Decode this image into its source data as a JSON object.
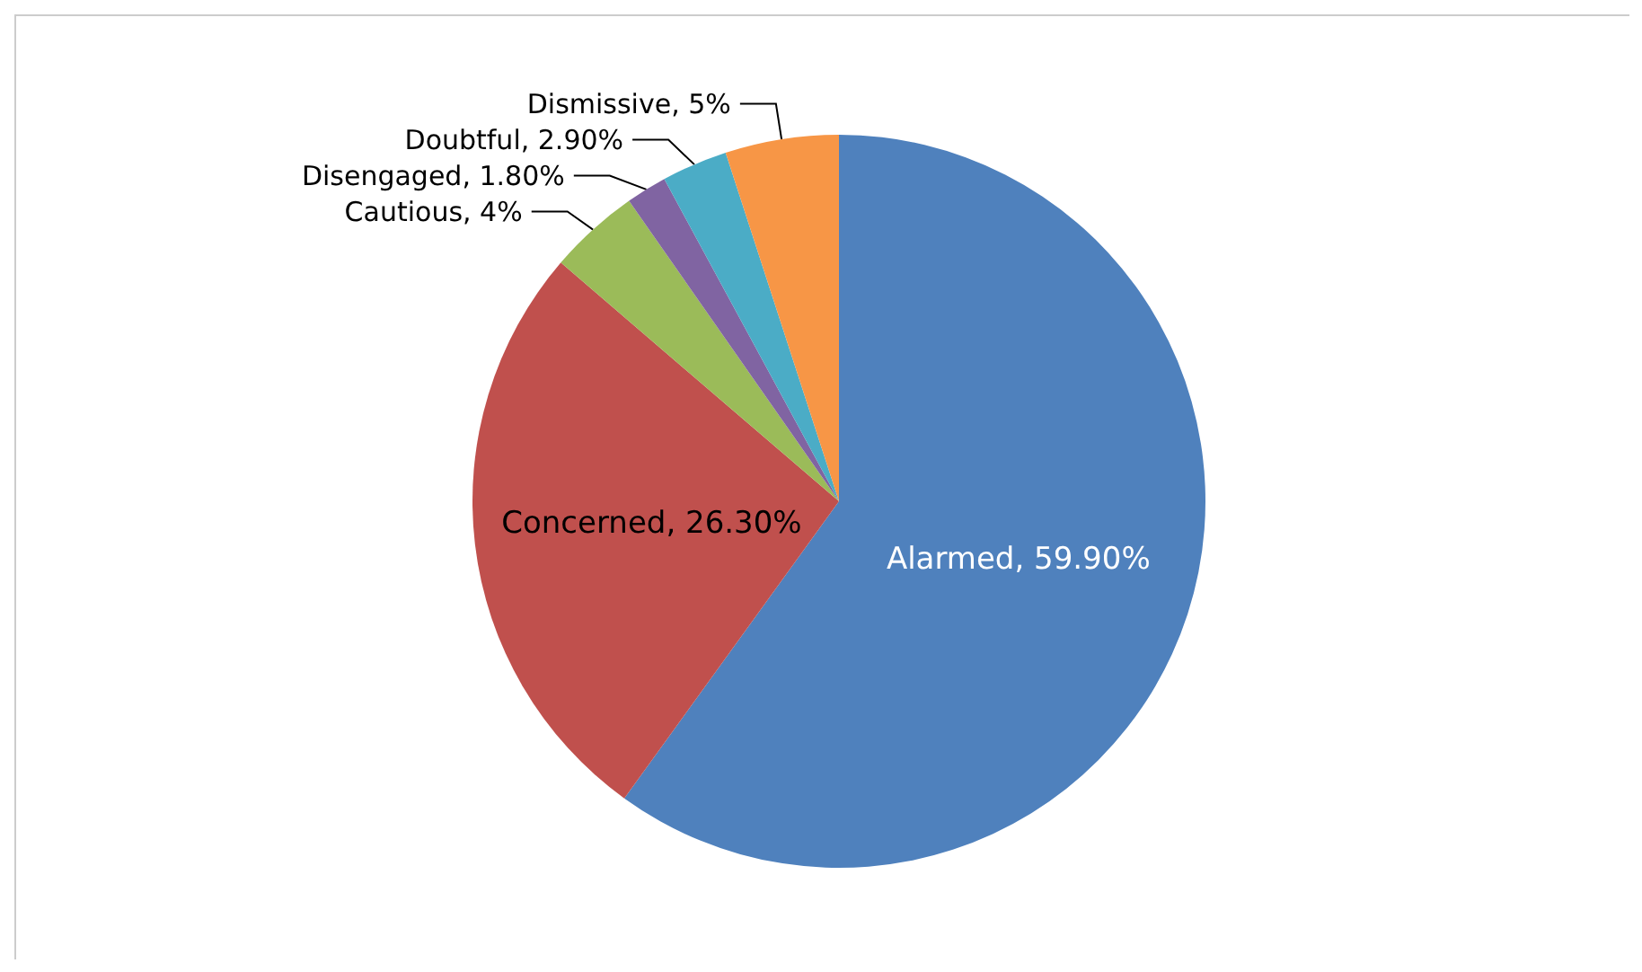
{
  "chart_data": {
    "type": "pie",
    "categories": [
      "Alarmed",
      "Concerned",
      "Cautious",
      "Disengaged",
      "Doubtful",
      "Dismissive"
    ],
    "values": [
      59.9,
      26.3,
      4,
      1.8,
      2.9,
      5
    ],
    "value_labels": [
      "59.90%",
      "26.30%",
      "4%",
      "1.80%",
      "2.90%",
      "5%"
    ],
    "colors": [
      "#4f81bd",
      "#c0504d",
      "#9bbb59",
      "#8064a2",
      "#4bacc6",
      "#f79646"
    ],
    "legend": false
  }
}
